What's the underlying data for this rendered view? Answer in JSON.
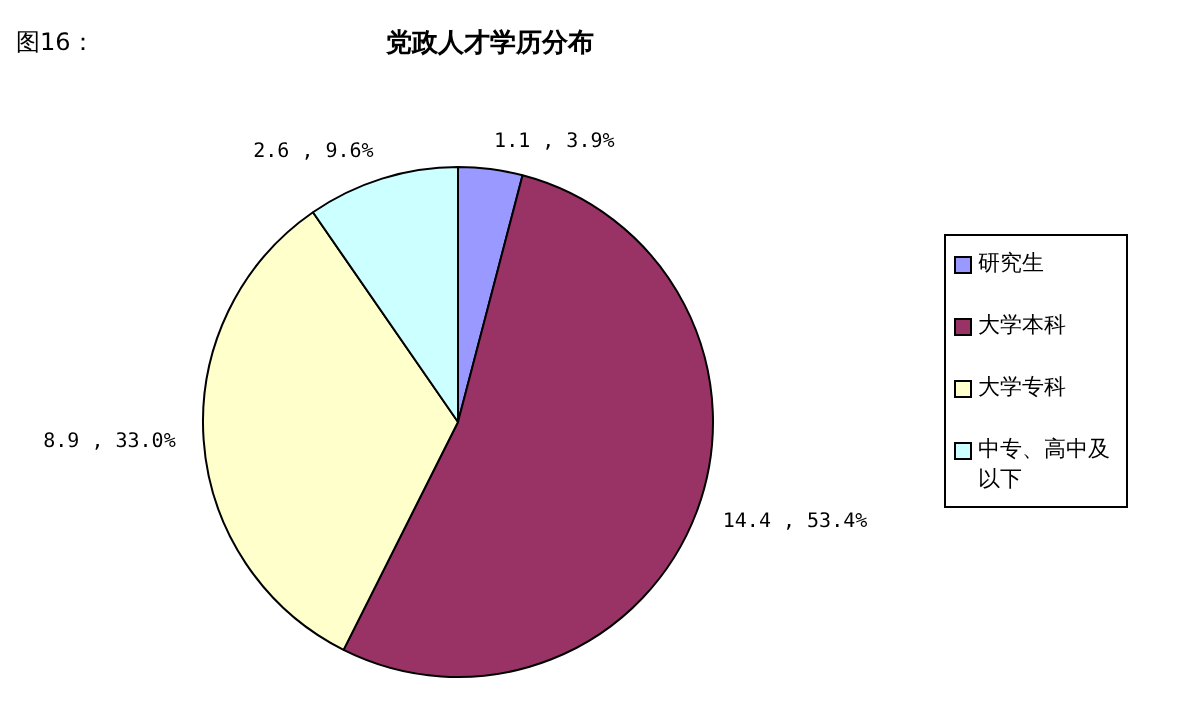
{
  "chart_data": {
    "type": "pie",
    "title": "党政人才学历分布",
    "annotations": [
      "图16："
    ],
    "categories": [
      "研究生",
      "大学本科",
      "大学专科",
      "中专、高中及以下"
    ],
    "values": [
      1.1,
      14.4,
      8.9,
      2.6
    ],
    "colors": [
      "#9999ff",
      "#993366",
      "#ffffcc",
      "#ccffff"
    ],
    "value_labels": [
      "1.1 , 3.9%",
      "14.4 , 53.4%",
      "8.9 , 33.0%",
      "2.6 , 9.6%"
    ],
    "legend": "right"
  }
}
